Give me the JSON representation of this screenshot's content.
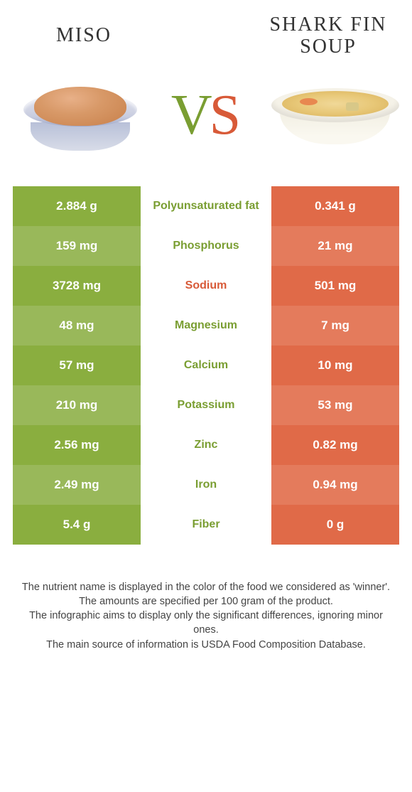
{
  "colors": {
    "left_dark": "#8aae3f",
    "left_light": "#99b85a",
    "right_dark": "#e06a48",
    "right_light": "#e47b5c",
    "winner_left": "#7a9e32",
    "winner_right": "#d85a38"
  },
  "header": {
    "left_title": "Miso",
    "right_title": "Shark fin soup",
    "vs_v": "V",
    "vs_s": "S"
  },
  "rows": [
    {
      "left": "2.884 g",
      "label": "Polyunsaturated fat",
      "right": "0.341 g",
      "winner": "left"
    },
    {
      "left": "159 mg",
      "label": "Phosphorus",
      "right": "21 mg",
      "winner": "left"
    },
    {
      "left": "3728 mg",
      "label": "Sodium",
      "right": "501 mg",
      "winner": "right"
    },
    {
      "left": "48 mg",
      "label": "Magnesium",
      "right": "7 mg",
      "winner": "left"
    },
    {
      "left": "57 mg",
      "label": "Calcium",
      "right": "10 mg",
      "winner": "left"
    },
    {
      "left": "210 mg",
      "label": "Potassium",
      "right": "53 mg",
      "winner": "left"
    },
    {
      "left": "2.56 mg",
      "label": "Zinc",
      "right": "0.82 mg",
      "winner": "left"
    },
    {
      "left": "2.49 mg",
      "label": "Iron",
      "right": "0.94 mg",
      "winner": "left"
    },
    {
      "left": "5.4 g",
      "label": "Fiber",
      "right": "0 g",
      "winner": "left"
    }
  ],
  "footer": {
    "line1": "The nutrient name is displayed in the color of the food we considered as 'winner'.",
    "line2": "The amounts are specified per 100 gram of the product.",
    "line3": "The infographic aims to display only the significant differences, ignoring minor ones.",
    "line4": "The main source of information is USDA Food Composition Database."
  }
}
